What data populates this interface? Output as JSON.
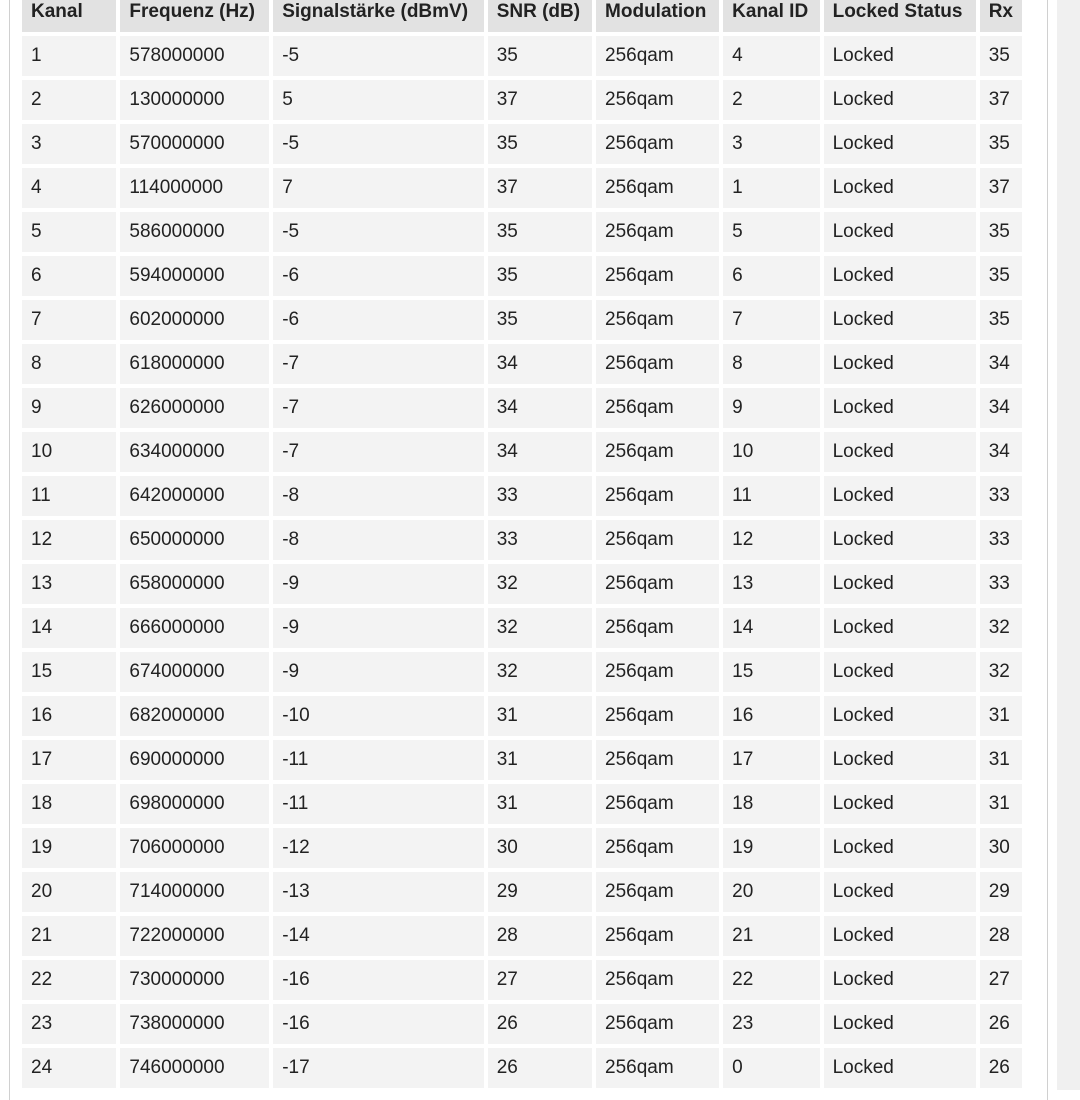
{
  "table": {
    "headers": [
      "Kanal",
      "Frequenz (Hz)",
      "Signalstärke (dBmV)",
      "SNR (dB)",
      "Modulation",
      "Kanal ID",
      "Locked Status",
      "Rx"
    ],
    "rows": [
      [
        "1",
        "578000000",
        "-5",
        "35",
        "256qam",
        "4",
        "Locked",
        "35"
      ],
      [
        "2",
        "130000000",
        "5",
        "37",
        "256qam",
        "2",
        "Locked",
        "37"
      ],
      [
        "3",
        "570000000",
        "-5",
        "35",
        "256qam",
        "3",
        "Locked",
        "35"
      ],
      [
        "4",
        "114000000",
        "7",
        "37",
        "256qam",
        "1",
        "Locked",
        "37"
      ],
      [
        "5",
        "586000000",
        "-5",
        "35",
        "256qam",
        "5",
        "Locked",
        "35"
      ],
      [
        "6",
        "594000000",
        "-6",
        "35",
        "256qam",
        "6",
        "Locked",
        "35"
      ],
      [
        "7",
        "602000000",
        "-6",
        "35",
        "256qam",
        "7",
        "Locked",
        "35"
      ],
      [
        "8",
        "618000000",
        "-7",
        "34",
        "256qam",
        "8",
        "Locked",
        "34"
      ],
      [
        "9",
        "626000000",
        "-7",
        "34",
        "256qam",
        "9",
        "Locked",
        "34"
      ],
      [
        "10",
        "634000000",
        "-7",
        "34",
        "256qam",
        "10",
        "Locked",
        "34"
      ],
      [
        "11",
        "642000000",
        "-8",
        "33",
        "256qam",
        "11",
        "Locked",
        "33"
      ],
      [
        "12",
        "650000000",
        "-8",
        "33",
        "256qam",
        "12",
        "Locked",
        "33"
      ],
      [
        "13",
        "658000000",
        "-9",
        "32",
        "256qam",
        "13",
        "Locked",
        "33"
      ],
      [
        "14",
        "666000000",
        "-9",
        "32",
        "256qam",
        "14",
        "Locked",
        "32"
      ],
      [
        "15",
        "674000000",
        "-9",
        "32",
        "256qam",
        "15",
        "Locked",
        "32"
      ],
      [
        "16",
        "682000000",
        "-10",
        "31",
        "256qam",
        "16",
        "Locked",
        "31"
      ],
      [
        "17",
        "690000000",
        "-11",
        "31",
        "256qam",
        "17",
        "Locked",
        "31"
      ],
      [
        "18",
        "698000000",
        "-11",
        "31",
        "256qam",
        "18",
        "Locked",
        "31"
      ],
      [
        "19",
        "706000000",
        "-12",
        "30",
        "256qam",
        "19",
        "Locked",
        "30"
      ],
      [
        "20",
        "714000000",
        "-13",
        "29",
        "256qam",
        "20",
        "Locked",
        "29"
      ],
      [
        "21",
        "722000000",
        "-14",
        "28",
        "256qam",
        "21",
        "Locked",
        "28"
      ],
      [
        "22",
        "730000000",
        "-16",
        "27",
        "256qam",
        "22",
        "Locked",
        "27"
      ],
      [
        "23",
        "738000000",
        "-16",
        "26",
        "256qam",
        "23",
        "Locked",
        "26"
      ],
      [
        "24",
        "746000000",
        "-17",
        "26",
        "256qam",
        "0",
        "Locked",
        "26"
      ]
    ]
  },
  "colors": {
    "header_bg": "#e2e2e2",
    "cell_bg": "#f3f3f3"
  }
}
